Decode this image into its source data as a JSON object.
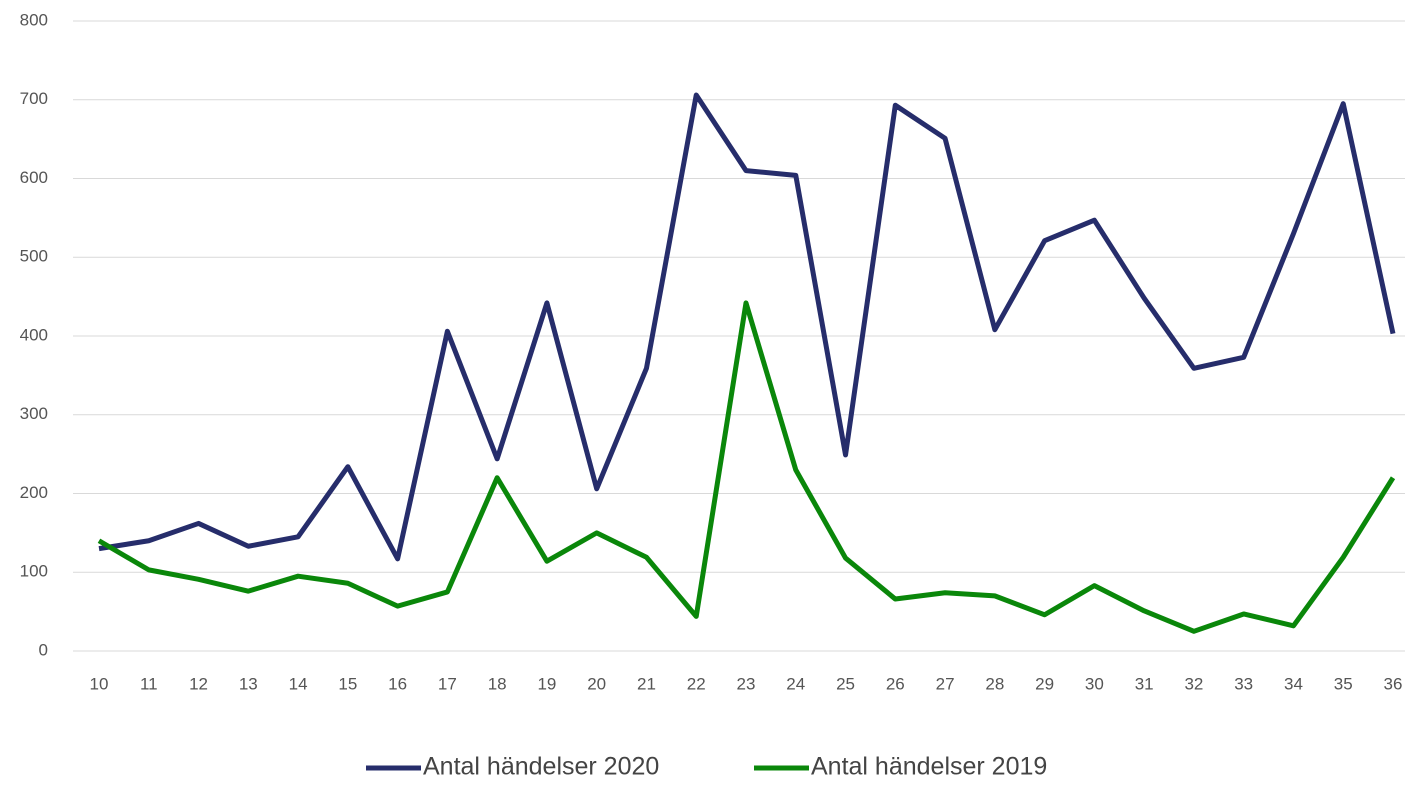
{
  "chart_data": {
    "type": "line",
    "categories": [
      "10",
      "11",
      "12",
      "13",
      "14",
      "15",
      "16",
      "17",
      "18",
      "19",
      "20",
      "21",
      "22",
      "23",
      "24",
      "25",
      "26",
      "27",
      "28",
      "29",
      "30",
      "31",
      "32",
      "33",
      "34",
      "35",
      "36"
    ],
    "series": [
      {
        "name": "Antal händelser 2020",
        "color": "#262d6b",
        "values": [
          130,
          140,
          162,
          133,
          145,
          234,
          117,
          406,
          244,
          442,
          206,
          359,
          706,
          610,
          604,
          249,
          693,
          651,
          408,
          521,
          547,
          448,
          359,
          373,
          530,
          695,
          403
        ]
      },
      {
        "name": "Antal händelser 2019",
        "color": "#0a870a",
        "values": [
          140,
          103,
          91,
          76,
          95,
          86,
          57,
          75,
          220,
          114,
          150,
          119,
          44,
          442,
          230,
          118,
          66,
          74,
          70,
          46,
          83,
          51,
          25,
          47,
          32,
          119,
          220
        ]
      }
    ],
    "ylim": [
      0,
      800
    ],
    "yticks": [
      0,
      100,
      200,
      300,
      400,
      500,
      600,
      700,
      800
    ],
    "grid": true,
    "legend": "bottom"
  }
}
